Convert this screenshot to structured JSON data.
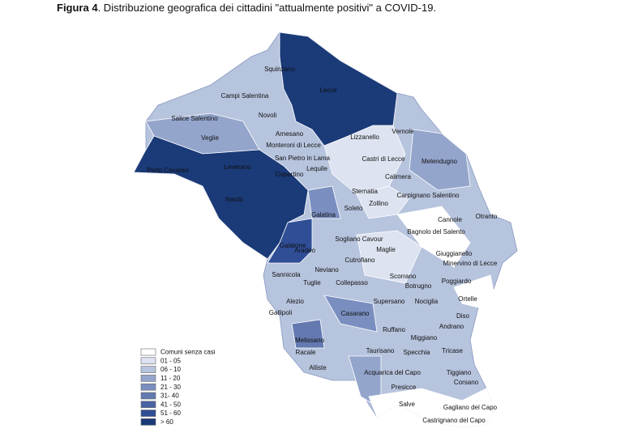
{
  "caption": {
    "label": "Figura 4",
    "text": ". Distribuzione  geografica dei cittadini \"attualmente positivi\" a COVID-19."
  },
  "map": {
    "labels": [
      "Squinzano",
      "Campi Salentina",
      "Lecce",
      "Salice Salentino",
      "Novoli",
      "Vernole",
      "Arnesano",
      "Lizzanello",
      "Veglie",
      "Monteroni di Lecce",
      "San Pietro in Lama",
      "Castri di Lecce",
      "Melendugno",
      "Leverano",
      "Lequile",
      "Porto Cesareo",
      "Copertino",
      "Calimera",
      "Sternatia",
      "Carpignano Salentino",
      "Nardò",
      "Zollino",
      "Soleto",
      "Galatina",
      "Cannole",
      "Otranto",
      "Sogliano Cavour",
      "Bagnolo del Salento",
      "Galatone",
      "Maglie",
      "Aradeo",
      "Giuggianello",
      "Cutrofiano",
      "Minervino di Lecce",
      "Neviano",
      "Sannicola",
      "Scorrano",
      "Poggiardo",
      "Tuglie",
      "Collepasso",
      "Botrugno",
      "Ortelle",
      "Alezio",
      "Supersano",
      "Nociglia",
      "Gallipoli",
      "Casarano",
      "Diso",
      "Andrano",
      "Ruffano",
      "Miggiano",
      "Melissano",
      "Racale",
      "Taurisano",
      "Specchia",
      "Tricase",
      "Alliste",
      "Acquarica del Capo",
      "Tiggiano",
      "Corsano",
      "Presicce",
      "Salve",
      "Gagliano del Capo",
      "Castrignano del Capo"
    ]
  },
  "legend": {
    "items": [
      {
        "label": "Comuni senza casi",
        "color": "#ffffff"
      },
      {
        "label": "01 - 05",
        "color": "#dde3f0"
      },
      {
        "label": "06 - 10",
        "color": "#b7c4de"
      },
      {
        "label": "11 - 20",
        "color": "#94a5cc"
      },
      {
        "label": "21 - 30",
        "color": "#7a8fbf"
      },
      {
        "label": "31- 40",
        "color": "#6379b0"
      },
      {
        "label": "41 - 50",
        "color": "#4a63a2"
      },
      {
        "label": "51 - 60",
        "color": "#2f4e96"
      },
      {
        "label": "> 60",
        "color": "#1a3a78"
      }
    ]
  }
}
